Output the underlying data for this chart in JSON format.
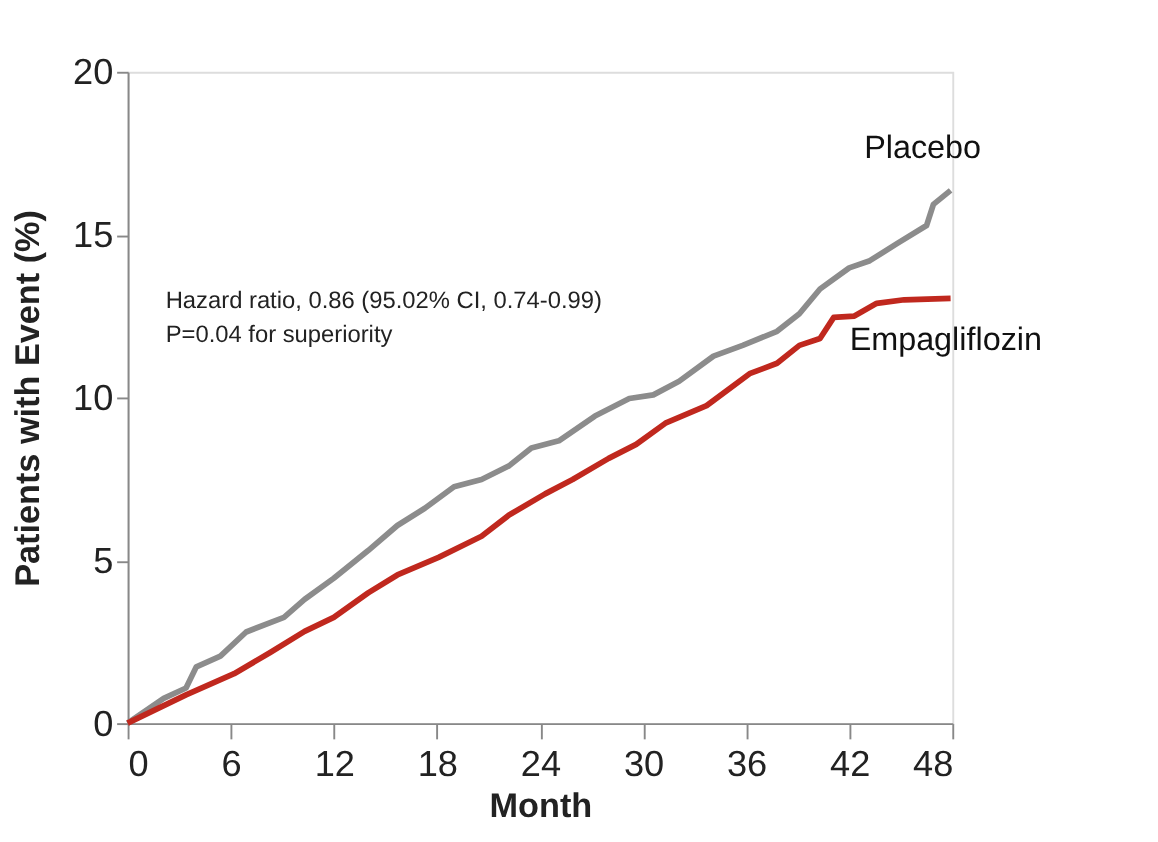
{
  "chart_data": {
    "type": "line",
    "xlabel": "Month",
    "ylabel": "Patients with Event (%)",
    "xlim": [
      0,
      48
    ],
    "xticks": [
      0,
      6,
      12,
      18,
      24,
      30,
      36,
      42,
      48
    ],
    "ylim": [
      0,
      20
    ],
    "yticks": [
      0,
      5,
      10,
      15,
      20
    ],
    "grid": false,
    "legend": false,
    "marker": "none",
    "line_style": "solid",
    "annotations": [
      "Hazard ratio, 0.86 (95.02% CI, 0.74-0.99)",
      "P=0.04 for superiority"
    ],
    "series": [
      {
        "name": "Placebo",
        "color": "#8c8c8c",
        "x": [
          0,
          2.1,
          3.4,
          4,
          5.4,
          6.9,
          9.1,
          10.3,
          12,
          14,
          15.7,
          17.3,
          19,
          20.6,
          22.2,
          23.5,
          25.1,
          27.2,
          29.2,
          30.6,
          32.1,
          34.1,
          35.8,
          37.8,
          39.1,
          40.3,
          42,
          43.2,
          44.8,
          46.5,
          46.9,
          47.9
        ],
        "values": [
          0,
          0.76,
          1.08,
          1.73,
          2.06,
          2.8,
          3.25,
          3.8,
          4.45,
          5.3,
          6.07,
          6.6,
          7.26,
          7.48,
          7.9,
          8.45,
          8.67,
          9.43,
          9.97,
          10.08,
          10.5,
          11.27,
          11.6,
          12.03,
          12.57,
          13.33,
          13.98,
          14.2,
          14.73,
          15.28,
          15.93,
          16.36
        ]
      },
      {
        "name": "Empagliflozin",
        "color": "#c0281e",
        "x": [
          0,
          3.4,
          6.2,
          8.3,
          10.3,
          12,
          14,
          15.7,
          18.1,
          20.6,
          22.2,
          24.3,
          25.9,
          28,
          29.6,
          31.3,
          33.7,
          36.2,
          37.8,
          39.1,
          40.3,
          41.1,
          42.3,
          43.6,
          45.2,
          47.9
        ],
        "values": [
          0,
          0.87,
          1.52,
          2.17,
          2.82,
          3.25,
          4.0,
          4.55,
          5.09,
          5.74,
          6.39,
          7.04,
          7.48,
          8.13,
          8.56,
          9.21,
          9.75,
          10.73,
          11.05,
          11.6,
          11.81,
          12.46,
          12.5,
          12.89,
          13.0,
          13.04
        ]
      }
    ]
  }
}
